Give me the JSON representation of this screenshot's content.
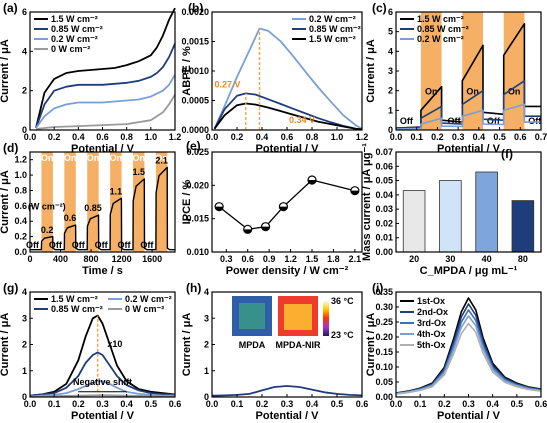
{
  "chart_data": [
    {
      "panel": "(a)",
      "type": "line",
      "xlabel": "Potential / V",
      "ylabel": "Current / μA",
      "xlim": [
        0,
        1.2
      ],
      "ylim": [
        0,
        6
      ],
      "xticks": [
        "0.0",
        "0.2",
        "0.4",
        "0.6",
        "0.8",
        "1.0",
        "1.2"
      ],
      "yticks": [
        "0",
        "2",
        "4",
        "6"
      ],
      "legend_position": "top-left",
      "series": [
        {
          "name": "1.5 W cm⁻²",
          "color": "#000000",
          "x": [
            0.05,
            0.12,
            0.2,
            0.3,
            0.4,
            0.5,
            0.6,
            0.7,
            0.8,
            0.9,
            1.0,
            1.05,
            1.1,
            1.15,
            1.2
          ],
          "y": [
            0.1,
            1.9,
            2.6,
            2.9,
            3.0,
            3.05,
            3.1,
            3.15,
            3.3,
            3.5,
            3.8,
            4.2,
            4.8,
            5.6,
            6.2
          ]
        },
        {
          "name": "0.85 W cm⁻²",
          "color": "#1f3d7a",
          "x": [
            0.05,
            0.12,
            0.2,
            0.3,
            0.4,
            0.5,
            0.6,
            0.7,
            0.8,
            0.9,
            1.0,
            1.05,
            1.1,
            1.15,
            1.2
          ],
          "y": [
            0.1,
            1.3,
            2.0,
            2.2,
            2.3,
            2.3,
            2.3,
            2.35,
            2.4,
            2.5,
            2.7,
            2.9,
            3.2,
            3.7,
            4.4
          ]
        },
        {
          "name": "0.2 W cm⁻²",
          "color": "#7a9fd6",
          "x": [
            0.05,
            0.12,
            0.2,
            0.3,
            0.4,
            0.5,
            0.6,
            0.7,
            0.8,
            0.9,
            1.0,
            1.05,
            1.1,
            1.15,
            1.2
          ],
          "y": [
            0.1,
            0.7,
            1.1,
            1.3,
            1.4,
            1.4,
            1.4,
            1.45,
            1.5,
            1.55,
            1.7,
            1.85,
            2.0,
            2.3,
            2.8
          ]
        },
        {
          "name": "0 W cm⁻²",
          "color": "#9a9a9a",
          "x": [
            0.05,
            0.2,
            0.4,
            0.6,
            0.8,
            0.9,
            1.0,
            1.05,
            1.1,
            1.15,
            1.2
          ],
          "y": [
            0.05,
            0.15,
            0.2,
            0.25,
            0.3,
            0.4,
            0.5,
            0.7,
            0.9,
            1.3,
            1.8
          ]
        }
      ]
    },
    {
      "panel": "(b)",
      "type": "line",
      "xlabel": "Potential / V",
      "ylabel": "ABPE / %",
      "xlim": [
        0,
        1.2
      ],
      "ylim": [
        0,
        0.002
      ],
      "xticks": [
        "0.0",
        "0.2",
        "0.4",
        "0.6",
        "0.8",
        "1.0",
        "1.2"
      ],
      "yticks": [
        "0.0000",
        "0.0005",
        "0.0010",
        "0.0015",
        "0.0020"
      ],
      "legend_position": "top-right",
      "series": [
        {
          "name": "0.2 W cm⁻²",
          "color": "#7a9fd6",
          "x": [
            0.02,
            0.1,
            0.2,
            0.3,
            0.38,
            0.45,
            0.55,
            0.65,
            0.75,
            0.85,
            0.95,
            1.05,
            1.15,
            1.2
          ],
          "y": [
            2e-05,
            0.0004,
            0.0009,
            0.00135,
            0.00172,
            0.00168,
            0.0015,
            0.00125,
            0.00098,
            0.00072,
            0.00048,
            0.00025,
            8e-05,
            2e-05
          ]
        },
        {
          "name": "0.85 W cm⁻²",
          "color": "#1f3d7a",
          "x": [
            0.02,
            0.1,
            0.2,
            0.27,
            0.35,
            0.45,
            0.55,
            0.65,
            0.75,
            0.85,
            0.95,
            1.05,
            1.15,
            1.2
          ],
          "y": [
            2e-05,
            0.00035,
            0.00058,
            0.00062,
            0.0006,
            0.00052,
            0.00044,
            0.00036,
            0.00028,
            0.0002,
            0.00013,
            7e-05,
            2e-05,
            1e-05
          ]
        },
        {
          "name": "1.5 W cm⁻²",
          "color": "#000000",
          "x": [
            0.02,
            0.1,
            0.2,
            0.27,
            0.35,
            0.45,
            0.55,
            0.65,
            0.75,
            0.85,
            0.95,
            1.05,
            1.15,
            1.2
          ],
          "y": [
            2e-05,
            0.00025,
            0.00042,
            0.00045,
            0.00043,
            0.00038,
            0.00032,
            0.00026,
            0.0002,
            0.00014,
            0.0001,
            6e-05,
            2e-05,
            1e-05
          ]
        }
      ],
      "annotations": [
        {
          "text": "0.27 V",
          "color": "#f08a1c",
          "x": 0.27
        },
        {
          "text": "0.34 V",
          "color": "#f08a1c",
          "x": 0.34
        }
      ]
    },
    {
      "panel": "(c)",
      "type": "line",
      "xlabel": "Potential / V",
      "ylabel": "Current / μA",
      "xlim": [
        0,
        0.7
      ],
      "ylim": [
        0,
        6
      ],
      "xticks": [
        "0.0",
        "0.1",
        "0.2",
        "0.3",
        "0.4",
        "0.5",
        "0.6",
        "0.7"
      ],
      "yticks": [
        "0",
        "1",
        "2",
        "3",
        "4",
        "5",
        "6"
      ],
      "legend_position": "top-left",
      "on_intervals": [
        [
          0.12,
          0.22
        ],
        [
          0.32,
          0.42
        ],
        [
          0.52,
          0.62
        ]
      ],
      "labels": {
        "on": "On",
        "off": "Off"
      },
      "series": [
        {
          "name": "1.5 W cm⁻²",
          "color": "#000000",
          "x": [
            0.0,
            0.12,
            0.12,
            0.22,
            0.22,
            0.32,
            0.32,
            0.42,
            0.42,
            0.52,
            0.52,
            0.62,
            0.62,
            0.7
          ],
          "y": [
            0.1,
            0.15,
            1.0,
            2.2,
            0.5,
            0.4,
            2.5,
            4.3,
            0.9,
            0.8,
            3.8,
            5.4,
            1.2,
            1.2
          ]
        },
        {
          "name": "0.85 W cm⁻²",
          "color": "#1f3d7a",
          "x": [
            0.0,
            0.12,
            0.12,
            0.22,
            0.22,
            0.32,
            0.32,
            0.42,
            0.42,
            0.52,
            0.52,
            0.62,
            0.62,
            0.7
          ],
          "y": [
            0.1,
            0.12,
            0.6,
            1.2,
            0.35,
            0.3,
            1.3,
            2.0,
            0.55,
            0.5,
            1.8,
            2.5,
            0.7,
            0.7
          ]
        },
        {
          "name": "0.2 W cm⁻²",
          "color": "#7a9fd6",
          "x": [
            0.0,
            0.12,
            0.12,
            0.22,
            0.22,
            0.32,
            0.32,
            0.42,
            0.42,
            0.52,
            0.52,
            0.62,
            0.62,
            0.7
          ],
          "y": [
            0.05,
            0.08,
            0.3,
            0.6,
            0.2,
            0.18,
            0.7,
            1.0,
            0.3,
            0.28,
            1.0,
            1.3,
            0.4,
            0.4
          ]
        }
      ]
    },
    {
      "panel": "(d)",
      "type": "line",
      "xlabel": "Time / s",
      "ylabel": "Current / μA",
      "xlim": [
        0,
        1900
      ],
      "ylim": [
        0,
        1.3
      ],
      "xticks": [
        "0",
        "400",
        "800",
        "1200",
        "1600"
      ],
      "yticks": [
        "0.0",
        "0.2",
        "0.4",
        "0.6",
        "0.8",
        "1.0",
        "1.2"
      ],
      "on_intervals": [
        [
          150,
          300
        ],
        [
          450,
          600
        ],
        [
          750,
          900
        ],
        [
          1050,
          1200
        ],
        [
          1350,
          1500
        ],
        [
          1650,
          1800
        ]
      ],
      "labels": {
        "on": "On",
        "off": "Off",
        "units": "(W cm⁻²)"
      },
      "power_levels": [
        "0.2",
        "0.6",
        "0.85",
        "1.1",
        "1.5",
        "2.1"
      ],
      "series": [
        {
          "name": "photocurrent",
          "color": "#000000",
          "peaks": [
            0.2,
            0.35,
            0.48,
            0.7,
            0.95,
            1.1
          ],
          "baseline": 0.03
        }
      ]
    },
    {
      "panel": "(e)",
      "type": "scatter",
      "xlabel": "Power density / W cm⁻²",
      "ylabel": "IPCE / %",
      "xlim": [
        0.1,
        2.2
      ],
      "ylim": [
        0.01,
        0.025
      ],
      "xticks": [
        "0.3",
        "0.6",
        "0.9",
        "1.2",
        "1.5",
        "1.8",
        "2.1"
      ],
      "yticks": [
        "0.010",
        "0.015",
        "0.020",
        "0.025"
      ],
      "x": [
        0.2,
        0.6,
        0.85,
        1.1,
        1.5,
        2.1
      ],
      "y": [
        0.0168,
        0.0134,
        0.0138,
        0.0168,
        0.0208,
        0.0192
      ]
    },
    {
      "panel": "(f)",
      "type": "bar",
      "xlabel": "C_MPDA / μg mL⁻¹",
      "ylabel": "Mass current / μA μg⁻¹",
      "ylim": [
        0,
        0.07
      ],
      "yticks": [
        "0.00",
        "0.01",
        "0.02",
        "0.03",
        "0.04",
        "0.05",
        "0.06",
        "0.07"
      ],
      "categories": [
        "20",
        "30",
        "40",
        "80"
      ],
      "values": [
        0.043,
        0.05,
        0.056,
        0.036
      ]
    },
    {
      "panel": "(g)",
      "type": "line",
      "xlabel": "Potential / V",
      "ylabel": "Current / μA",
      "xlim": [
        0,
        0.6
      ],
      "ylim": [
        0,
        4
      ],
      "xticks": [
        "0.0",
        "0.1",
        "0.2",
        "0.3",
        "0.4",
        "0.5",
        "0.6"
      ],
      "yticks": [
        "0",
        "1",
        "2",
        "3",
        "4"
      ],
      "legend_position": "top",
      "annotations": [
        {
          "text": "x10"
        },
        {
          "text": "Negative shift"
        }
      ],
      "series": [
        {
          "name": "1.5 W cm⁻²",
          "color": "#000000",
          "x": [
            0,
            0.05,
            0.1,
            0.15,
            0.2,
            0.23,
            0.26,
            0.28,
            0.3,
            0.33,
            0.36,
            0.4,
            0.45,
            0.5,
            0.55,
            0.6
          ],
          "y": [
            0.05,
            0.1,
            0.2,
            0.5,
            1.4,
            2.3,
            3.0,
            3.1,
            2.8,
            2.0,
            1.2,
            0.6,
            0.3,
            0.2,
            0.15,
            0.1
          ]
        },
        {
          "name": "0.85 W cm⁻²",
          "color": "#1f3d7a",
          "x": [
            0,
            0.05,
            0.1,
            0.15,
            0.2,
            0.23,
            0.26,
            0.28,
            0.3,
            0.33,
            0.36,
            0.4,
            0.45,
            0.5,
            0.55,
            0.6
          ],
          "y": [
            0.05,
            0.1,
            0.15,
            0.35,
            0.8,
            1.3,
            1.6,
            1.7,
            1.6,
            1.2,
            0.8,
            0.45,
            0.25,
            0.15,
            0.1,
            0.1
          ]
        },
        {
          "name": "0.2 W cm⁻²",
          "color": "#7a9fd6",
          "x": [
            0,
            0.05,
            0.1,
            0.15,
            0.2,
            0.25,
            0.28,
            0.3,
            0.33,
            0.36,
            0.4,
            0.45,
            0.5,
            0.55,
            0.6
          ],
          "y": [
            0.02,
            0.05,
            0.08,
            0.15,
            0.3,
            0.5,
            0.6,
            0.6,
            0.5,
            0.35,
            0.2,
            0.12,
            0.08,
            0.05,
            0.05
          ]
        },
        {
          "name": "0 W cm⁻²",
          "color": "#9a9a9a",
          "x": [
            0,
            0.1,
            0.2,
            0.3,
            0.4,
            0.5,
            0.6
          ],
          "y": [
            0.02,
            0.03,
            0.05,
            0.07,
            0.05,
            0.03,
            0.02
          ]
        }
      ]
    },
    {
      "panel": "(h)",
      "type": "line",
      "xlabel": "Potential / V",
      "ylabel": "Current / μA",
      "xlim": [
        0,
        0.6
      ],
      "ylim": [
        0,
        4
      ],
      "xticks": [
        "0.0",
        "0.1",
        "0.2",
        "0.3",
        "0.4",
        "0.5",
        "0.6"
      ],
      "yticks": [
        "0",
        "1",
        "2",
        "3",
        "4"
      ],
      "inset": {
        "left_label": "MPDA",
        "right_label": "MPDA-NIR",
        "scale_max": "36 °C",
        "scale_min": "23 °C"
      },
      "series": [
        {
          "name": "",
          "color": "#1f3d7a",
          "x": [
            0,
            0.05,
            0.1,
            0.15,
            0.2,
            0.25,
            0.3,
            0.35,
            0.4,
            0.45,
            0.5,
            0.55,
            0.6
          ],
          "y": [
            0.05,
            0.06,
            0.08,
            0.12,
            0.25,
            0.38,
            0.42,
            0.38,
            0.28,
            0.18,
            0.12,
            0.08,
            0.06
          ]
        }
      ]
    },
    {
      "panel": "(i)",
      "type": "line",
      "xlabel": "Potential / V",
      "ylabel": "Current / μA",
      "xlim": [
        0,
        0.6
      ],
      "ylim": [
        0,
        0.35
      ],
      "xticks": [
        "0.0",
        "0.1",
        "0.2",
        "0.3",
        "0.4",
        "0.5",
        "0.6"
      ],
      "yticks": [
        "0.00",
        "0.05",
        "0.10",
        "0.15",
        "0.20",
        "0.25",
        "0.30",
        "0.35"
      ],
      "legend_position": "top-left",
      "series": [
        {
          "name": "1st-Ox",
          "color": "#000000",
          "peak": 0.33
        },
        {
          "name": "2nd-Ox",
          "color": "#1f3d7a",
          "peak": 0.31
        },
        {
          "name": "3rd-Ox",
          "color": "#3f6fb8",
          "peak": 0.29
        },
        {
          "name": "4th-Ox",
          "color": "#7a9fd6",
          "peak": 0.27
        },
        {
          "name": "5th-Ox",
          "color": "#b0b0b0",
          "peak": 0.245
        }
      ]
    }
  ]
}
